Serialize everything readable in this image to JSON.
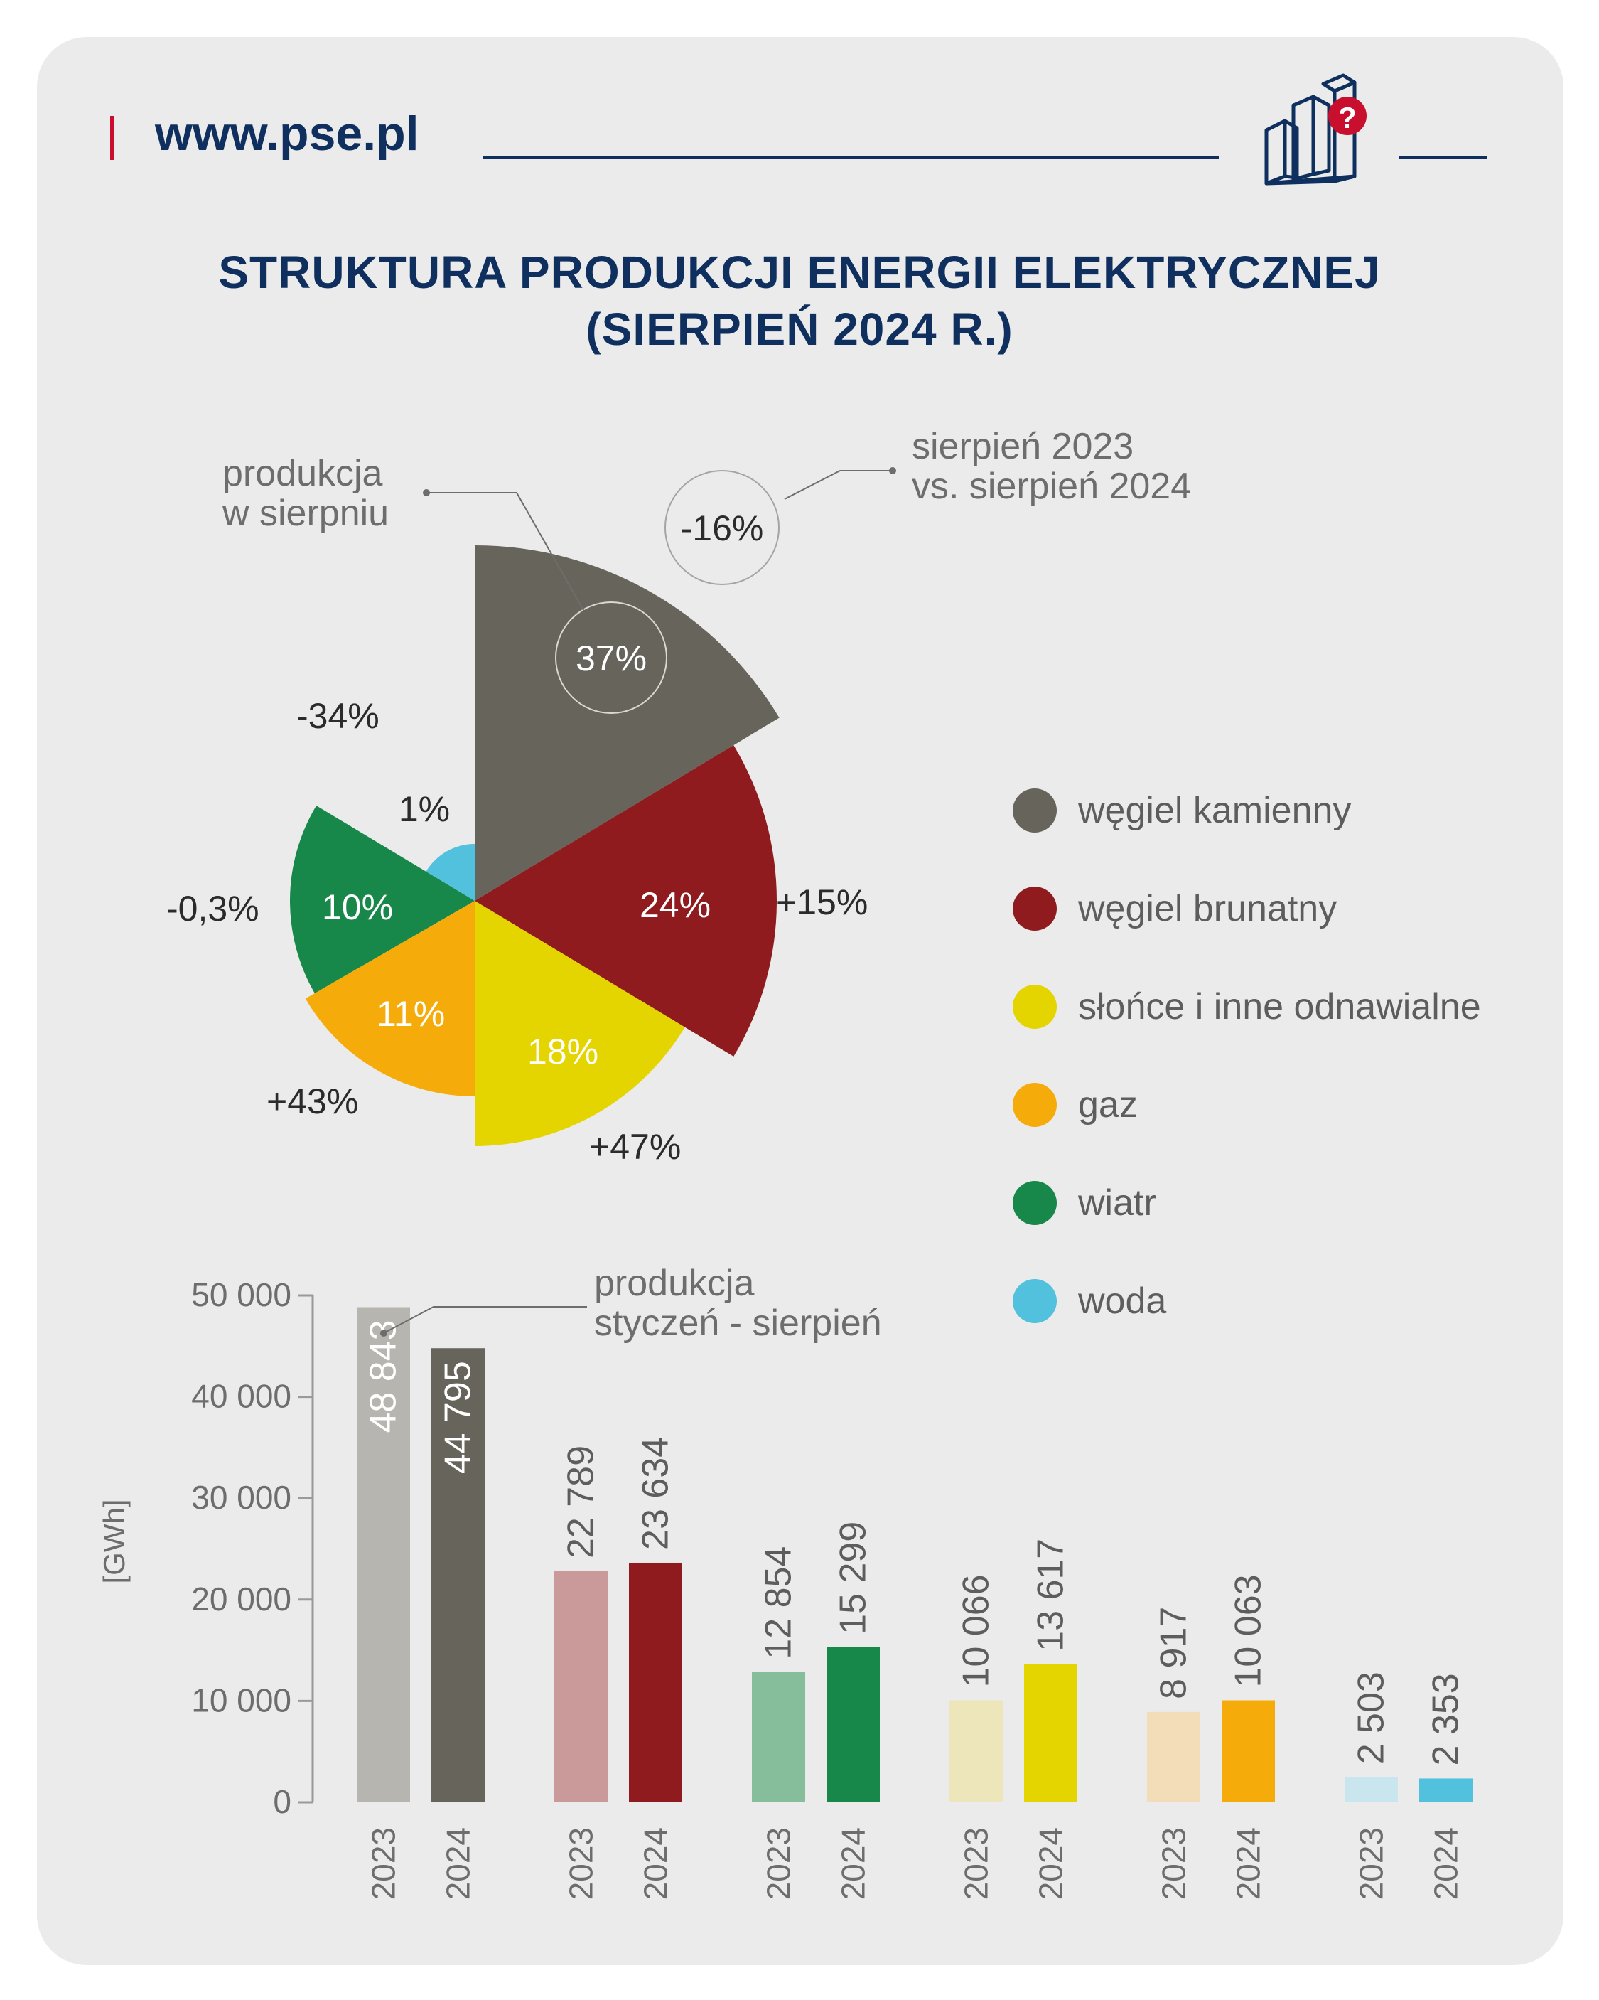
{
  "header": {
    "site": "www.pse.pl",
    "icon": "building-question-icon"
  },
  "title": {
    "line1": "STRUKTURA PRODUKCJI ENERGII ELEKTRYCZNEJ",
    "line2": "(SIERPIEŃ 2024 R.)"
  },
  "pie_annotations": {
    "month_label_line1": "produkcja",
    "month_label_line2": "w sierpniu",
    "comparison_line1": "sierpień 2023",
    "comparison_line2": "vs. sierpień 2024",
    "total_change": "-16%"
  },
  "legend": [
    {
      "label": "węgiel kamienny",
      "color": "#67645b"
    },
    {
      "label": "węgiel brunatny",
      "color": "#8f1b1e"
    },
    {
      "label": "słońce i inne odnawialne",
      "color": "#e4d400"
    },
    {
      "label": "gaz",
      "color": "#f5ab0a"
    },
    {
      "label": "wiatr",
      "color": "#17874a"
    },
    {
      "label": "woda",
      "color": "#52c1de"
    }
  ],
  "bar_annotation": {
    "line1": "produkcja",
    "line2": "styczeń - sierpień"
  },
  "chart_data": [
    {
      "type": "pie",
      "variant": "rose",
      "slices": [
        {
          "name": "węgiel kamienny",
          "label": "37%",
          "value": 37,
          "change": "-34%",
          "color": "#67645b"
        },
        {
          "name": "węgiel brunatny",
          "label": "24%",
          "value": 24,
          "change": "+15%",
          "color": "#8f1b1e"
        },
        {
          "name": "słońce i inne odnawialne",
          "label": "18%",
          "value": 18,
          "change": "+47%",
          "color": "#e4d400"
        },
        {
          "name": "gaz",
          "label": "11%",
          "value": 11,
          "change": "+43%",
          "color": "#f5ab0a"
        },
        {
          "name": "wiatr",
          "label": "10%",
          "value": 10,
          "change": "-0,3%",
          "color": "#17874a"
        },
        {
          "name": "woda",
          "label": "1%",
          "value": 1,
          "change": "",
          "color": "#52c1de"
        }
      ]
    },
    {
      "type": "bar",
      "ylabel": "[GWh]",
      "ylim": [
        0,
        50000
      ],
      "yticks": [
        "0",
        "10 000",
        "20 000",
        "30 000",
        "40 000",
        "50 000"
      ],
      "year_labels": [
        "2023",
        "2024"
      ],
      "groups": [
        {
          "name": "węgiel kamienny",
          "values": [
            48843,
            44795
          ],
          "labels": [
            "48 843",
            "44 795"
          ],
          "colors": [
            "#b7b5af",
            "#67645b"
          ],
          "label_inside": true
        },
        {
          "name": "węgiel brunatny",
          "values": [
            22789,
            23634
          ],
          "labels": [
            "22 789",
            "23 634"
          ],
          "colors": [
            "#ca999a",
            "#8f1b1e"
          ]
        },
        {
          "name": "wiatr",
          "values": [
            12854,
            15299
          ],
          "labels": [
            "12 854",
            "15 299"
          ],
          "colors": [
            "#86bd9b",
            "#17874a"
          ]
        },
        {
          "name": "słońce i inne odnawialne",
          "values": [
            10066,
            13617
          ],
          "labels": [
            "10 066",
            "13 617"
          ],
          "colors": [
            "#ede6bb",
            "#e4d400"
          ]
        },
        {
          "name": "gaz",
          "values": [
            8917,
            10063
          ],
          "labels": [
            "8 917",
            "10 063"
          ],
          "colors": [
            "#f3dcb8",
            "#f5ab0a"
          ]
        },
        {
          "name": "woda",
          "values": [
            2503,
            2353
          ],
          "labels": [
            "2 503",
            "2 353"
          ],
          "colors": [
            "#c9e6ee",
            "#52c1de"
          ]
        }
      ]
    }
  ]
}
